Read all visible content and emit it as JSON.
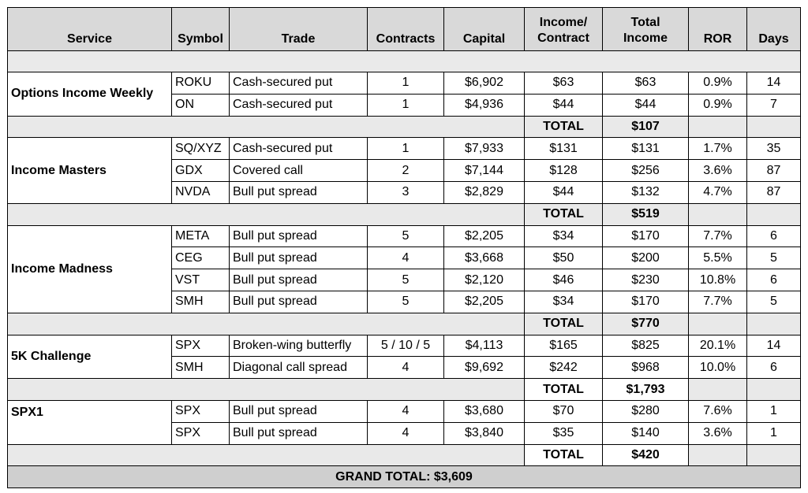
{
  "headers": {
    "service": "Service",
    "symbol": "Symbol",
    "trade": "Trade",
    "contracts": "Contracts",
    "capital": "Capital",
    "income_contract_line1": "Income/",
    "income_contract_line2": "Contract",
    "total_income_line1": "Total",
    "total_income_line2": "Income",
    "ror": "ROR",
    "days": "Days"
  },
  "groups": [
    {
      "service": "Options Income Weekly",
      "rows": [
        {
          "symbol": "ROKU",
          "trade": "Cash-secured put",
          "contracts": "1",
          "capital": "$6,902",
          "income_contract": "$63",
          "total_income": "$63",
          "ror": "0.9%",
          "days": "14"
        },
        {
          "symbol": "ON",
          "trade": "Cash-secured put",
          "contracts": "1",
          "capital": "$4,936",
          "income_contract": "$44",
          "total_income": "$44",
          "ror": "0.9%",
          "days": "7"
        }
      ],
      "total_label": "TOTAL",
      "total": "$107"
    },
    {
      "service": "Income Masters",
      "rows": [
        {
          "symbol": "SQ/XYZ",
          "trade": "Cash-secured put",
          "contracts": "1",
          "capital": "$7,933",
          "income_contract": "$131",
          "total_income": "$131",
          "ror": "1.7%",
          "days": "35"
        },
        {
          "symbol": "GDX",
          "trade": "Covered call",
          "contracts": "2",
          "capital": "$7,144",
          "income_contract": "$128",
          "total_income": "$256",
          "ror": "3.6%",
          "days": "87"
        },
        {
          "symbol": "NVDA",
          "trade": "Bull put spread",
          "contracts": "3",
          "capital": "$2,829",
          "income_contract": "$44",
          "total_income": "$132",
          "ror": "4.7%",
          "days": "87"
        }
      ],
      "total_label": "TOTAL",
      "total": "$519"
    },
    {
      "service": "Income Madness",
      "rows": [
        {
          "symbol": "META",
          "trade": "Bull put spread",
          "contracts": "5",
          "capital": "$2,205",
          "income_contract": "$34",
          "total_income": "$170",
          "ror": "7.7%",
          "days": "6"
        },
        {
          "symbol": "CEG",
          "trade": "Bull put spread",
          "contracts": "4",
          "capital": "$3,668",
          "income_contract": "$50",
          "total_income": "$200",
          "ror": "5.5%",
          "days": "5"
        },
        {
          "symbol": "VST",
          "trade": "Bull put spread",
          "contracts": "5",
          "capital": "$2,120",
          "income_contract": "$46",
          "total_income": "$230",
          "ror": "10.8%",
          "days": "6"
        },
        {
          "symbol": "SMH",
          "trade": "Bull put spread",
          "contracts": "5",
          "capital": "$2,205",
          "income_contract": "$34",
          "total_income": "$170",
          "ror": "7.7%",
          "days": "5"
        }
      ],
      "total_label": "TOTAL",
      "total": "$770"
    },
    {
      "service": "5K Challenge",
      "rows": [
        {
          "symbol": "SPX",
          "trade": "Broken-wing butterfly",
          "contracts": "5 / 10 / 5",
          "capital": "$4,113",
          "income_contract": "$165",
          "total_income": "$825",
          "ror": "20.1%",
          "days": "14"
        },
        {
          "symbol": "SMH",
          "trade": "Diagonal call spread",
          "contracts": "4",
          "capital": "$9,692",
          "income_contract": "$242",
          "total_income": "$968",
          "ror": "10.0%",
          "days": "6"
        }
      ],
      "total_label": "TOTAL",
      "total": "$1,793"
    },
    {
      "service": "SPX1",
      "rows": [
        {
          "symbol": "SPX",
          "trade": "Bull put spread",
          "contracts": "4",
          "capital": "$3,680",
          "income_contract": "$70",
          "total_income": "$280",
          "ror": "7.6%",
          "days": "1"
        },
        {
          "symbol": "SPX",
          "trade": "Bull put spread",
          "contracts": "4",
          "capital": "$3,840",
          "income_contract": "$35",
          "total_income": "$140",
          "ror": "3.6%",
          "days": "1"
        }
      ],
      "total_label": "TOTAL",
      "total": "$420"
    }
  ],
  "grand_total": "GRAND TOTAL: $3,609"
}
